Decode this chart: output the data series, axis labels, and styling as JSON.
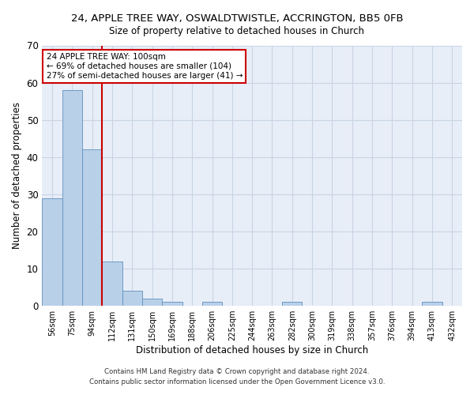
{
  "title1": "24, APPLE TREE WAY, OSWALDTWISTLE, ACCRINGTON, BB5 0FB",
  "title2": "Size of property relative to detached houses in Church",
  "xlabel": "Distribution of detached houses by size in Church",
  "ylabel": "Number of detached properties",
  "categories": [
    "56sqm",
    "75sqm",
    "94sqm",
    "112sqm",
    "131sqm",
    "150sqm",
    "169sqm",
    "188sqm",
    "206sqm",
    "225sqm",
    "244sqm",
    "263sqm",
    "282sqm",
    "300sqm",
    "319sqm",
    "338sqm",
    "357sqm",
    "376sqm",
    "394sqm",
    "413sqm",
    "432sqm"
  ],
  "values": [
    29,
    58,
    42,
    12,
    4,
    2,
    1,
    0,
    1,
    0,
    0,
    0,
    1,
    0,
    0,
    0,
    0,
    0,
    0,
    1,
    0
  ],
  "bar_color": "#b8d0e8",
  "bar_edge_color": "#6090c0",
  "vline_color": "#cc0000",
  "annotation_line1": "24 APPLE TREE WAY: 100sqm",
  "annotation_line2": "← 69% of detached houses are smaller (104)",
  "annotation_line3": "27% of semi-detached houses are larger (41) →",
  "annotation_box_color": "#cc0000",
  "footnote1": "Contains HM Land Registry data © Crown copyright and database right 2024.",
  "footnote2": "Contains public sector information licensed under the Open Government Licence v3.0.",
  "ylim": [
    0,
    70
  ],
  "yticks": [
    0,
    10,
    20,
    30,
    40,
    50,
    60,
    70
  ],
  "grid_color": "#c8d4e4",
  "bg_color": "#e8eef8"
}
